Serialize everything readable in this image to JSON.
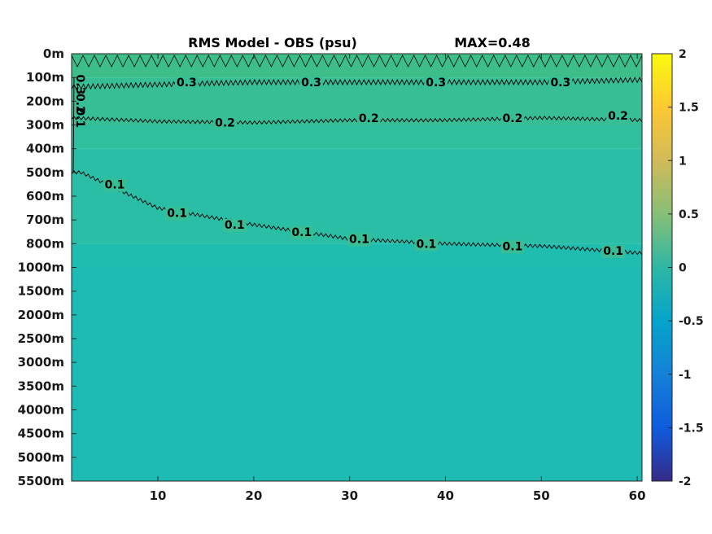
{
  "chart_data": {
    "type": "heatmap",
    "title": "RMS Model - OBS (psu)",
    "annotation": "MAX=0.48",
    "x_ticks": [
      10,
      20,
      30,
      40,
      50,
      60
    ],
    "xlim": [
      1,
      60.5
    ],
    "y_ticks": [
      "0m",
      "100m",
      "200m",
      "300m",
      "400m",
      "500m",
      "600m",
      "700m",
      "800m",
      "1000m",
      "1500m",
      "2000m",
      "2500m",
      "3000m",
      "3500m",
      "4000m",
      "4500m",
      "5000m",
      "5500m"
    ],
    "colorbar": {
      "ticks": [
        "2",
        "1.5",
        "1",
        "0.5",
        "0",
        "-0.5",
        "-1",
        "-1.5",
        "-2"
      ],
      "clim": [
        -2,
        2
      ],
      "colormap": "parula"
    },
    "field_layers": [
      {
        "depth_index_range": [
          0,
          1
        ],
        "value": 0.35,
        "color": "#3dbd88"
      },
      {
        "depth_index_range": [
          1,
          3
        ],
        "value": 0.27,
        "color": "#38be94"
      },
      {
        "depth_index_range": [
          3,
          4
        ],
        "value": 0.2,
        "color": "#30bf9c"
      },
      {
        "depth_index_range": [
          4,
          8
        ],
        "value": 0.15,
        "color": "#2bbea6"
      },
      {
        "depth_index_range": [
          8,
          9
        ],
        "value": 0.08,
        "color": "#1fbcb0"
      },
      {
        "depth_index_range": [
          9,
          18
        ],
        "value": 0.04,
        "color": "#1dbbb3"
      }
    ],
    "contours": [
      {
        "level": "0.3",
        "x": [
          1,
          10,
          20,
          30,
          40,
          50,
          60.5
        ],
        "depth_index": [
          1.4,
          1.3,
          1.2,
          1.2,
          1.2,
          1.2,
          1.1
        ]
      },
      {
        "level": "0.2",
        "x": [
          1,
          10,
          20,
          30,
          40,
          50,
          60.5
        ],
        "depth_index": [
          2.7,
          2.85,
          2.9,
          2.8,
          2.8,
          2.7,
          2.8
        ]
      },
      {
        "level": "0.1",
        "x": [
          1,
          2,
          10,
          20,
          30,
          40,
          50,
          60.5
        ],
        "depth_index": [
          5.0,
          5.0,
          6.5,
          7.2,
          7.8,
          8.0,
          8.1,
          8.4
        ]
      }
    ],
    "contour_labels": [
      {
        "text": "0.3",
        "x": 13,
        "depth_index": 1.2
      },
      {
        "text": "0.3",
        "x": 26,
        "depth_index": 1.2
      },
      {
        "text": "0.3",
        "x": 39,
        "depth_index": 1.2
      },
      {
        "text": "0.3",
        "x": 52,
        "depth_index": 1.2
      },
      {
        "text": "0.2",
        "x": 17,
        "depth_index": 2.9
      },
      {
        "text": "0.2",
        "x": 32,
        "depth_index": 2.7
      },
      {
        "text": "0.2",
        "x": 47,
        "depth_index": 2.7
      },
      {
        "text": "0.2",
        "x": 58,
        "depth_index": 2.6
      },
      {
        "text": "0.1",
        "x": 5.5,
        "depth_index": 5.5
      },
      {
        "text": "0.1",
        "x": 12,
        "depth_index": 6.7
      },
      {
        "text": "0.1",
        "x": 18,
        "depth_index": 7.2
      },
      {
        "text": "0.1",
        "x": 25,
        "depth_index": 7.5
      },
      {
        "text": "0.1",
        "x": 31,
        "depth_index": 7.8
      },
      {
        "text": "0.1",
        "x": 38,
        "depth_index": 8.0
      },
      {
        "text": "0.1",
        "x": 47,
        "depth_index": 8.1
      },
      {
        "text": "0.1",
        "x": 57.5,
        "depth_index": 8.3
      }
    ],
    "left_edge_labels": [
      {
        "text": "0.3",
        "depth_index": 1.3
      },
      {
        "text": "0.2",
        "depth_index": 2.1
      },
      {
        "text": "0.1",
        "depth_index": 2.7
      }
    ]
  }
}
